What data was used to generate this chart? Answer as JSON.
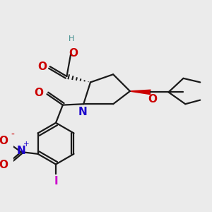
{
  "background_color": "#ebebeb",
  "figsize": [
    3.0,
    3.0
  ],
  "dpi": 100,
  "atom_colors": {
    "C": "#1a1a1a",
    "O": "#cc0000",
    "N": "#1a00cc",
    "I": "#cc00cc",
    "H": "#3a8a8a"
  }
}
